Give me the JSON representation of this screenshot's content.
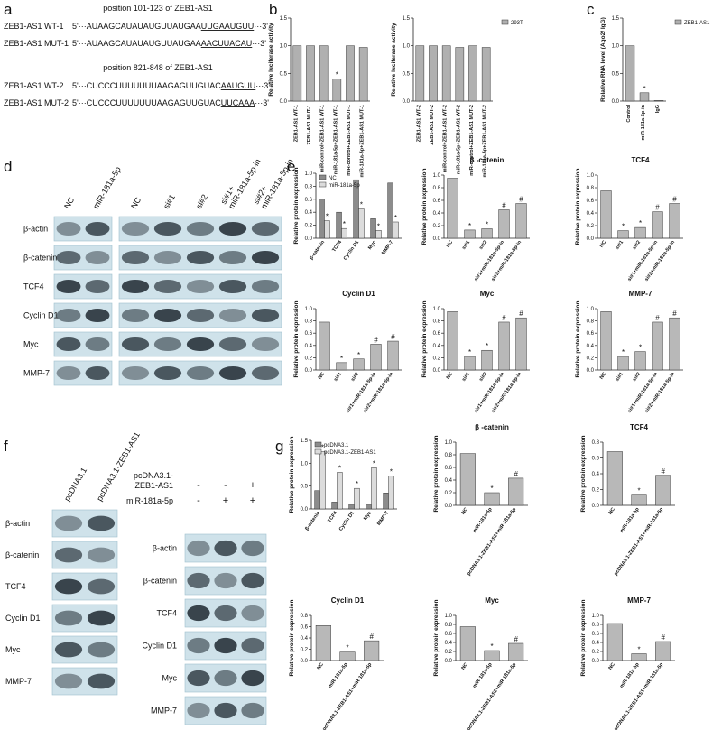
{
  "panel_labels": [
    "a",
    "b",
    "c",
    "d",
    "e",
    "f",
    "g"
  ],
  "sequences": [
    {
      "title": "position 101-123 of ZEB1-AS1",
      "rows": [
        {
          "name": "ZEB1-AS1 WT-1",
          "seq": [
            "5'···AUAAGCAUAUAUGUUAUGAA",
            "UUGAAUGUU",
            "···3'"
          ]
        },
        {
          "name": "ZEB1-AS1 MUT-1",
          "seq": [
            "5'···AUAAGCAUAUAUGUUAUGAA",
            "AACUUACAU",
            "···3'"
          ]
        }
      ]
    },
    {
      "title": "position 821-848 of ZEB1-AS1",
      "rows": [
        {
          "name": "ZEB1-AS1 WT-2",
          "seq": [
            "5'···CUCCCUUUUUUUAAGAGUUGUAC",
            "AAUGUU",
            "···3'"
          ]
        },
        {
          "name": "ZEB1-AS1 MUT-2",
          "seq": [
            "5'···CUCCCUUUUUUUAAGAGUUGUAC",
            "UUCAAA",
            "···3'"
          ]
        }
      ]
    }
  ],
  "blots": {
    "d": {
      "columns_left": [
        [
          "NC"
        ],
        [
          "miR-181a-5p"
        ]
      ],
      "columns_right": [
        [
          "NC"
        ],
        [
          "si#1"
        ],
        [
          "si#2"
        ],
        [
          "si#1+",
          "miR-181a-5p-in"
        ],
        [
          "si#2+",
          "miR-181a-5p-in"
        ]
      ],
      "rows": [
        "β-actin",
        "β-catenin",
        "TCF4",
        "Cyclin D1",
        "Myc",
        "MMP-7"
      ]
    },
    "f": {
      "columns_left": [
        [
          "pcDNA3.1"
        ],
        [
          "pcDNA3.1-ZEB1-AS1"
        ]
      ],
      "rows_left": [
        "β-actin",
        "β-catenin",
        "TCF4",
        "Cyclin D1",
        "Myc",
        "MMP-7"
      ],
      "treatments": [
        {
          "name": [
            "pcDNA3.1-",
            "ZEB1-AS1"
          ],
          "signs": [
            "-",
            "-",
            "+"
          ]
        },
        {
          "name": [
            "miR-181a-5p"
          ],
          "signs": [
            "-",
            "+",
            "+"
          ]
        }
      ],
      "rows_right": [
        "β-actin",
        "β-catenin",
        "TCF4",
        "Cyclin D1",
        "Myc",
        "MMP-7"
      ]
    }
  },
  "chart_data": [
    {
      "type": "bar",
      "ylabel": "Relative luciferase activity",
      "categories": [
        "ZEB1-AS1 WT-1",
        "ZEB1-AS1 MUT-1",
        "miR-control+ZEB1-AS1 WT-1",
        "miR-181a-5p+ZEB1-AS1 WT-1",
        "miR-control+ZEB1-AS1 MUT-1",
        "miR-181a-5p+ZEB1-AS1 MUT-1"
      ],
      "values": [
        1.0,
        1.0,
        1.0,
        0.4,
        1.0,
        0.97
      ],
      "annotations": [
        null,
        null,
        null,
        "*",
        null,
        null
      ],
      "color": "#b0b0b0",
      "ylim": [
        0,
        1.5
      ],
      "yticks": [
        {
          "value": 0,
          "label": "0.0"
        },
        {
          "value": 0.5,
          "label": "0.5"
        },
        {
          "value": 1,
          "label": "1.0"
        },
        {
          "value": 1.5,
          "label": "1.5"
        }
      ]
    },
    {
      "type": "bar",
      "ylabel": "Relative luciferase activity",
      "categories": [
        "ZEB1-AS1 WT-2",
        "ZEB1-AS1 MUT-2",
        "miR-control+ZEB1-AS1 WT-2",
        "miR-181a-5p+ZEB1-AS1 WT-2",
        "miR-control+ZEB1-AS1 MUT-2",
        "miR-181a-5p+ZEB1-AS1 MUT-2"
      ],
      "series": [
        {
          "name": "293T",
          "color": "#b0b0b0",
          "values": [
            1.0,
            1.0,
            1.0,
            0.97,
            1.0,
            0.97
          ]
        }
      ],
      "legend": "right",
      "ylim": [
        0,
        1.5
      ],
      "yticks": [
        {
          "value": 0,
          "label": "0.0"
        },
        {
          "value": 0.5,
          "label": "0.5"
        },
        {
          "value": 1,
          "label": "1.0"
        },
        {
          "value": 1.5,
          "label": "1.5"
        }
      ]
    },
    {
      "type": "bar",
      "ylabel": "Relative RNA level (Ago2/ IgG)",
      "categories": [
        "Control",
        "miR-181a-5p-in",
        "IgG"
      ],
      "series": [
        {
          "name": "ZEB1-AS1",
          "color": "#b0b0b0",
          "values": [
            1.0,
            0.15,
            0.01
          ],
          "annotations": [
            null,
            "*",
            null
          ]
        }
      ],
      "legend": "right",
      "ylim": [
        0,
        1.5
      ],
      "yticks": [
        {
          "value": 0,
          "label": "0.0"
        },
        {
          "value": 0.5,
          "label": "0.5"
        },
        {
          "value": 1,
          "label": "1.0"
        },
        {
          "value": 1.5,
          "label": "1.5"
        }
      ]
    },
    {
      "type": "bar",
      "ylabel": "Relative protein expression",
      "categories": [
        "β-catenin",
        "TCF4",
        "Cyclin D1",
        "Myc",
        "MMP-7"
      ],
      "series": [
        {
          "name": "NC",
          "color": "#8c8c8c",
          "values": [
            0.6,
            0.4,
            0.9,
            0.3,
            0.85
          ]
        },
        {
          "name": "miR-181a-5p",
          "color": "#dcdcdc",
          "values": [
            0.27,
            0.15,
            0.45,
            0.12,
            0.25
          ],
          "annotations": [
            "*",
            "*",
            "*",
            "*",
            "*"
          ]
        }
      ],
      "legend": "upper left",
      "ylim": [
        0,
        1
      ],
      "yticks": [
        {
          "value": 0,
          "label": "0.0"
        },
        {
          "value": 0.2,
          "label": "0.2"
        },
        {
          "value": 0.4,
          "label": "0.4"
        },
        {
          "value": 0.6,
          "label": "0.6"
        },
        {
          "value": 0.8,
          "label": "0.8"
        },
        {
          "value": 1,
          "label": "1.0"
        }
      ]
    },
    {
      "type": "bar",
      "title": "β -catenin",
      "ylabel": "Relative protein expression",
      "categories": [
        "NC",
        "si#1",
        "si#2",
        "si#1+miR-181a-5p-in",
        "si#2+miR-181a-5p-in"
      ],
      "values": [
        0.95,
        0.13,
        0.15,
        0.45,
        0.55
      ],
      "annotations": [
        null,
        "*",
        "*",
        "#",
        "#"
      ],
      "color": "#b8b8b8",
      "ylim": [
        0,
        1
      ],
      "yticks": [
        {
          "value": 0,
          "label": "0.0"
        },
        {
          "value": 0.2,
          "label": "0.2"
        },
        {
          "value": 0.4,
          "label": "0.4"
        },
        {
          "value": 0.6,
          "label": "0.6"
        },
        {
          "value": 0.8,
          "label": "0.8"
        },
        {
          "value": 1,
          "label": "1.0"
        }
      ]
    },
    {
      "type": "bar",
      "title": "TCF4",
      "ylabel": "Relative protein expression",
      "categories": [
        "NC",
        "si#1",
        "si#2",
        "si#1+miR-181a-5p-in",
        "si#2+miR-181a-5p-in"
      ],
      "values": [
        0.75,
        0.12,
        0.17,
        0.42,
        0.55
      ],
      "annotations": [
        null,
        "*",
        "*",
        "#",
        "#"
      ],
      "color": "#b8b8b8",
      "ylim": [
        0,
        1
      ],
      "yticks": [
        {
          "value": 0,
          "label": "0.0"
        },
        {
          "value": 0.2,
          "label": "0.2"
        },
        {
          "value": 0.4,
          "label": "0.4"
        },
        {
          "value": 0.6,
          "label": "0.6"
        },
        {
          "value": 0.8,
          "label": "0.8"
        },
        {
          "value": 1,
          "label": "1.0"
        }
      ]
    },
    {
      "type": "bar",
      "title": "Cyclin D1",
      "ylabel": "Relative protein expression",
      "categories": [
        "NC",
        "si#1",
        "si#2",
        "si#1+miR-181a-5p-in",
        "si#2+miR-181a-5p-in"
      ],
      "values": [
        0.78,
        0.12,
        0.18,
        0.42,
        0.47
      ],
      "annotations": [
        null,
        "*",
        "*",
        "#",
        "#"
      ],
      "color": "#b8b8b8",
      "ylim": [
        0,
        1
      ],
      "yticks": [
        {
          "value": 0,
          "label": "0.0"
        },
        {
          "value": 0.2,
          "label": "0.2"
        },
        {
          "value": 0.4,
          "label": "0.4"
        },
        {
          "value": 0.6,
          "label": "0.6"
        },
        {
          "value": 0.8,
          "label": "0.8"
        },
        {
          "value": 1,
          "label": "1.0"
        }
      ]
    },
    {
      "type": "bar",
      "title": "Myc",
      "ylabel": "Relative protein expression",
      "categories": [
        "NC",
        "si#1",
        "si#2",
        "si#1+miR-181a-5p-in",
        "si#2+miR-181a-5p-in"
      ],
      "values": [
        0.95,
        0.22,
        0.32,
        0.78,
        0.85
      ],
      "annotations": [
        null,
        "*",
        "*",
        "#",
        "#"
      ],
      "color": "#b8b8b8",
      "ylim": [
        0,
        1
      ],
      "yticks": [
        {
          "value": 0,
          "label": "0.0"
        },
        {
          "value": 0.2,
          "label": "0.2"
        },
        {
          "value": 0.4,
          "label": "0.4"
        },
        {
          "value": 0.6,
          "label": "0.6"
        },
        {
          "value": 0.8,
          "label": "0.8"
        },
        {
          "value": 1,
          "label": "1.0"
        }
      ]
    },
    {
      "type": "bar",
      "title": "MMP-7",
      "ylabel": "Relative protein expression",
      "categories": [
        "NC",
        "si#1",
        "si#2",
        "si#1+miR-181a-5p-in",
        "si#2+miR-181a-5p-in"
      ],
      "values": [
        0.95,
        0.22,
        0.3,
        0.78,
        0.85
      ],
      "annotations": [
        null,
        "*",
        "*",
        "#",
        "#"
      ],
      "color": "#b8b8b8",
      "ylim": [
        0,
        1
      ],
      "yticks": [
        {
          "value": 0,
          "label": "0.0"
        },
        {
          "value": 0.2,
          "label": "0.2"
        },
        {
          "value": 0.4,
          "label": "0.4"
        },
        {
          "value": 0.6,
          "label": "0.6"
        },
        {
          "value": 0.8,
          "label": "0.8"
        },
        {
          "value": 1,
          "label": "1.0"
        }
      ]
    },
    {
      "type": "bar",
      "ylabel": "Relative protein expression",
      "categories": [
        "β-catenin",
        "TCF4",
        "Cyclin D1",
        "Myc",
        "MMP-7"
      ],
      "series": [
        {
          "name": "pcDNA3.1",
          "color": "#8c8c8c",
          "values": [
            0.4,
            0.15,
            0.1,
            0.1,
            0.35
          ]
        },
        {
          "name": "pcDNA3.1-ZEB1-AS1",
          "color": "#dcdcdc",
          "values": [
            1.25,
            0.8,
            0.45,
            0.9,
            0.72
          ],
          "annotations": [
            "*",
            "*",
            "*",
            "*",
            "*"
          ]
        }
      ],
      "legend": "upper left",
      "ylim": [
        0,
        1.5
      ],
      "yticks": [
        {
          "value": 0,
          "label": "0.0"
        },
        {
          "value": 0.5,
          "label": "0.5"
        },
        {
          "value": 1,
          "label": "1.0"
        },
        {
          "value": 1.5,
          "label": "1.5"
        }
      ]
    },
    {
      "type": "bar",
      "title": "β -catenin",
      "ylabel": "Relative protein expression",
      "categories": [
        "NC",
        "miR-181a-5p",
        "pcDNA3.1-ZEB1-AS1+miR-181a-5p"
      ],
      "values": [
        0.82,
        0.2,
        0.43
      ],
      "annotations": [
        null,
        "*",
        "#"
      ],
      "color": "#b8b8b8",
      "ylim": [
        0,
        1
      ],
      "yticks": [
        {
          "value": 0,
          "label": "0.0"
        },
        {
          "value": 0.2,
          "label": "0.2"
        },
        {
          "value": 0.4,
          "label": "0.4"
        },
        {
          "value": 0.6,
          "label": "0.6"
        },
        {
          "value": 0.8,
          "label": "0.8"
        },
        {
          "value": 1,
          "label": "1.0"
        }
      ]
    },
    {
      "type": "bar",
      "title": "TCF4",
      "ylabel": "Relative protein expression",
      "categories": [
        "NC",
        "miR-181a-5p",
        "pcDNA3.1-ZEB1-AS1+miR-181a-5p"
      ],
      "values": [
        0.68,
        0.13,
        0.38
      ],
      "annotations": [
        null,
        "*",
        "#"
      ],
      "color": "#b8b8b8",
      "ylim": [
        0,
        0.8
      ],
      "yticks": [
        {
          "value": 0,
          "label": "0.0"
        },
        {
          "value": 0.2,
          "label": "0.2"
        },
        {
          "value": 0.4,
          "label": "0.4"
        },
        {
          "value": 0.6,
          "label": "0.6"
        },
        {
          "value": 0.8,
          "label": "0.8"
        }
      ]
    },
    {
      "type": "bar",
      "title": "Cyclin D1",
      "ylabel": "Relative protein expression",
      "categories": [
        "NC",
        "miR-181a-5p",
        "pcDNA3.1-ZEB1-AS1+miR-181a-5p"
      ],
      "values": [
        0.62,
        0.15,
        0.35
      ],
      "annotations": [
        null,
        "*",
        "#"
      ],
      "color": "#b8b8b8",
      "ylim": [
        0,
        0.8
      ],
      "yticks": [
        {
          "value": 0,
          "label": "0.0"
        },
        {
          "value": 0.2,
          "label": "0.2"
        },
        {
          "value": 0.4,
          "label": "0.4"
        },
        {
          "value": 0.6,
          "label": "0.6"
        },
        {
          "value": 0.8,
          "label": "0.8"
        }
      ]
    },
    {
      "type": "bar",
      "title": "Myc",
      "ylabel": "Relative protein expression",
      "categories": [
        "NC",
        "miR-181a-5p",
        "pcDNA3.1-ZEB1-AS1+miR-181a-5p"
      ],
      "values": [
        0.75,
        0.22,
        0.38
      ],
      "annotations": [
        null,
        "*",
        "#"
      ],
      "color": "#b8b8b8",
      "ylim": [
        0,
        1
      ],
      "yticks": [
        {
          "value": 0,
          "label": "0.0"
        },
        {
          "value": 0.2,
          "label": "0.2"
        },
        {
          "value": 0.4,
          "label": "0.4"
        },
        {
          "value": 0.6,
          "label": "0.6"
        },
        {
          "value": 0.8,
          "label": "0.8"
        },
        {
          "value": 1,
          "label": "1.0"
        }
      ]
    },
    {
      "type": "bar",
      "title": "MMP-7",
      "ylabel": "Relative protein expression",
      "categories": [
        "NC",
        "miR-181a-5p",
        "pcDNA3.1-ZEB1-AS1+miR-181a-5p"
      ],
      "values": [
        0.82,
        0.15,
        0.42
      ],
      "annotations": [
        null,
        "*",
        "#"
      ],
      "color": "#b8b8b8",
      "ylim": [
        0,
        1
      ],
      "yticks": [
        {
          "value": 0,
          "label": "0.0"
        },
        {
          "value": 0.2,
          "label": "0.2"
        },
        {
          "value": 0.4,
          "label": "0.4"
        },
        {
          "value": 0.6,
          "label": "0.6"
        },
        {
          "value": 0.8,
          "label": "0.8"
        },
        {
          "value": 1,
          "label": "1.0"
        }
      ]
    }
  ]
}
